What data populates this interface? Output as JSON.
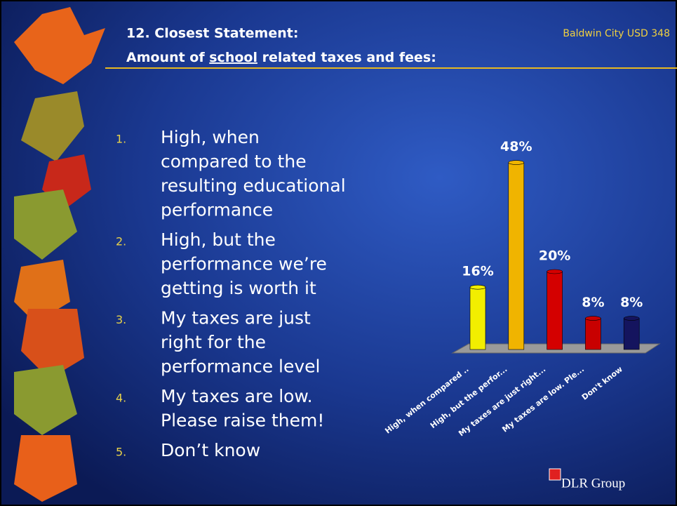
{
  "header": {
    "title_line1": "12. Closest Statement:",
    "title_line2_pre": "Amount of ",
    "title_line2_underlined": "school",
    "title_line2_post": " related taxes and fees:",
    "org": "Baldwin City USD 348"
  },
  "list": [
    {
      "number": "1.",
      "lines": [
        "High, when",
        "compared to the",
        "resulting educational",
        "performance"
      ]
    },
    {
      "number": "2.",
      "lines": [
        "High, but the",
        "performance we’re",
        "getting is worth it"
      ]
    },
    {
      "number": "3.",
      "lines": [
        "My taxes are just",
        "right for the",
        "performance level"
      ]
    },
    {
      "number": "4.",
      "lines": [
        "My taxes are low.",
        "Please raise them!"
      ]
    },
    {
      "number": "5.",
      "lines": [
        "Don’t know"
      ]
    }
  ],
  "logo": "DLR Group",
  "chart_data": {
    "type": "bar3d",
    "categories": [
      "High, when compared ..",
      "High, but the perfor...",
      "My taxes are just right...",
      "My taxes are low. Ple...",
      "Don't know"
    ],
    "values": [
      16,
      48,
      20,
      8,
      8
    ],
    "value_labels": [
      "16%",
      "48%",
      "20%",
      "8%",
      "8%"
    ],
    "colors": [
      "#f2ee00",
      "#f0b400",
      "#d40000",
      "#c80000",
      "#14145e"
    ]
  }
}
